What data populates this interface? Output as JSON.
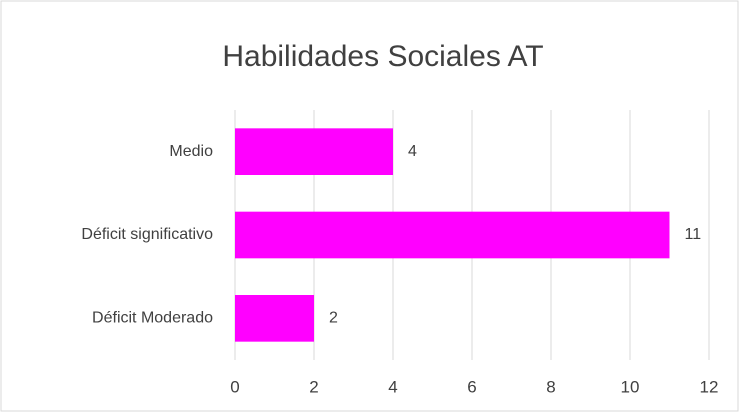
{
  "chart_data": {
    "type": "barh",
    "title": "Habilidades Sociales  AT",
    "categories": [
      "Medio",
      "Déficit significativo",
      "Déficit Moderado"
    ],
    "values": [
      4,
      11,
      2
    ],
    "color": "#ff00ff",
    "xlim": [
      0,
      12
    ],
    "xticks": [
      0,
      2,
      4,
      6,
      8,
      10,
      12
    ],
    "grid": true
  }
}
